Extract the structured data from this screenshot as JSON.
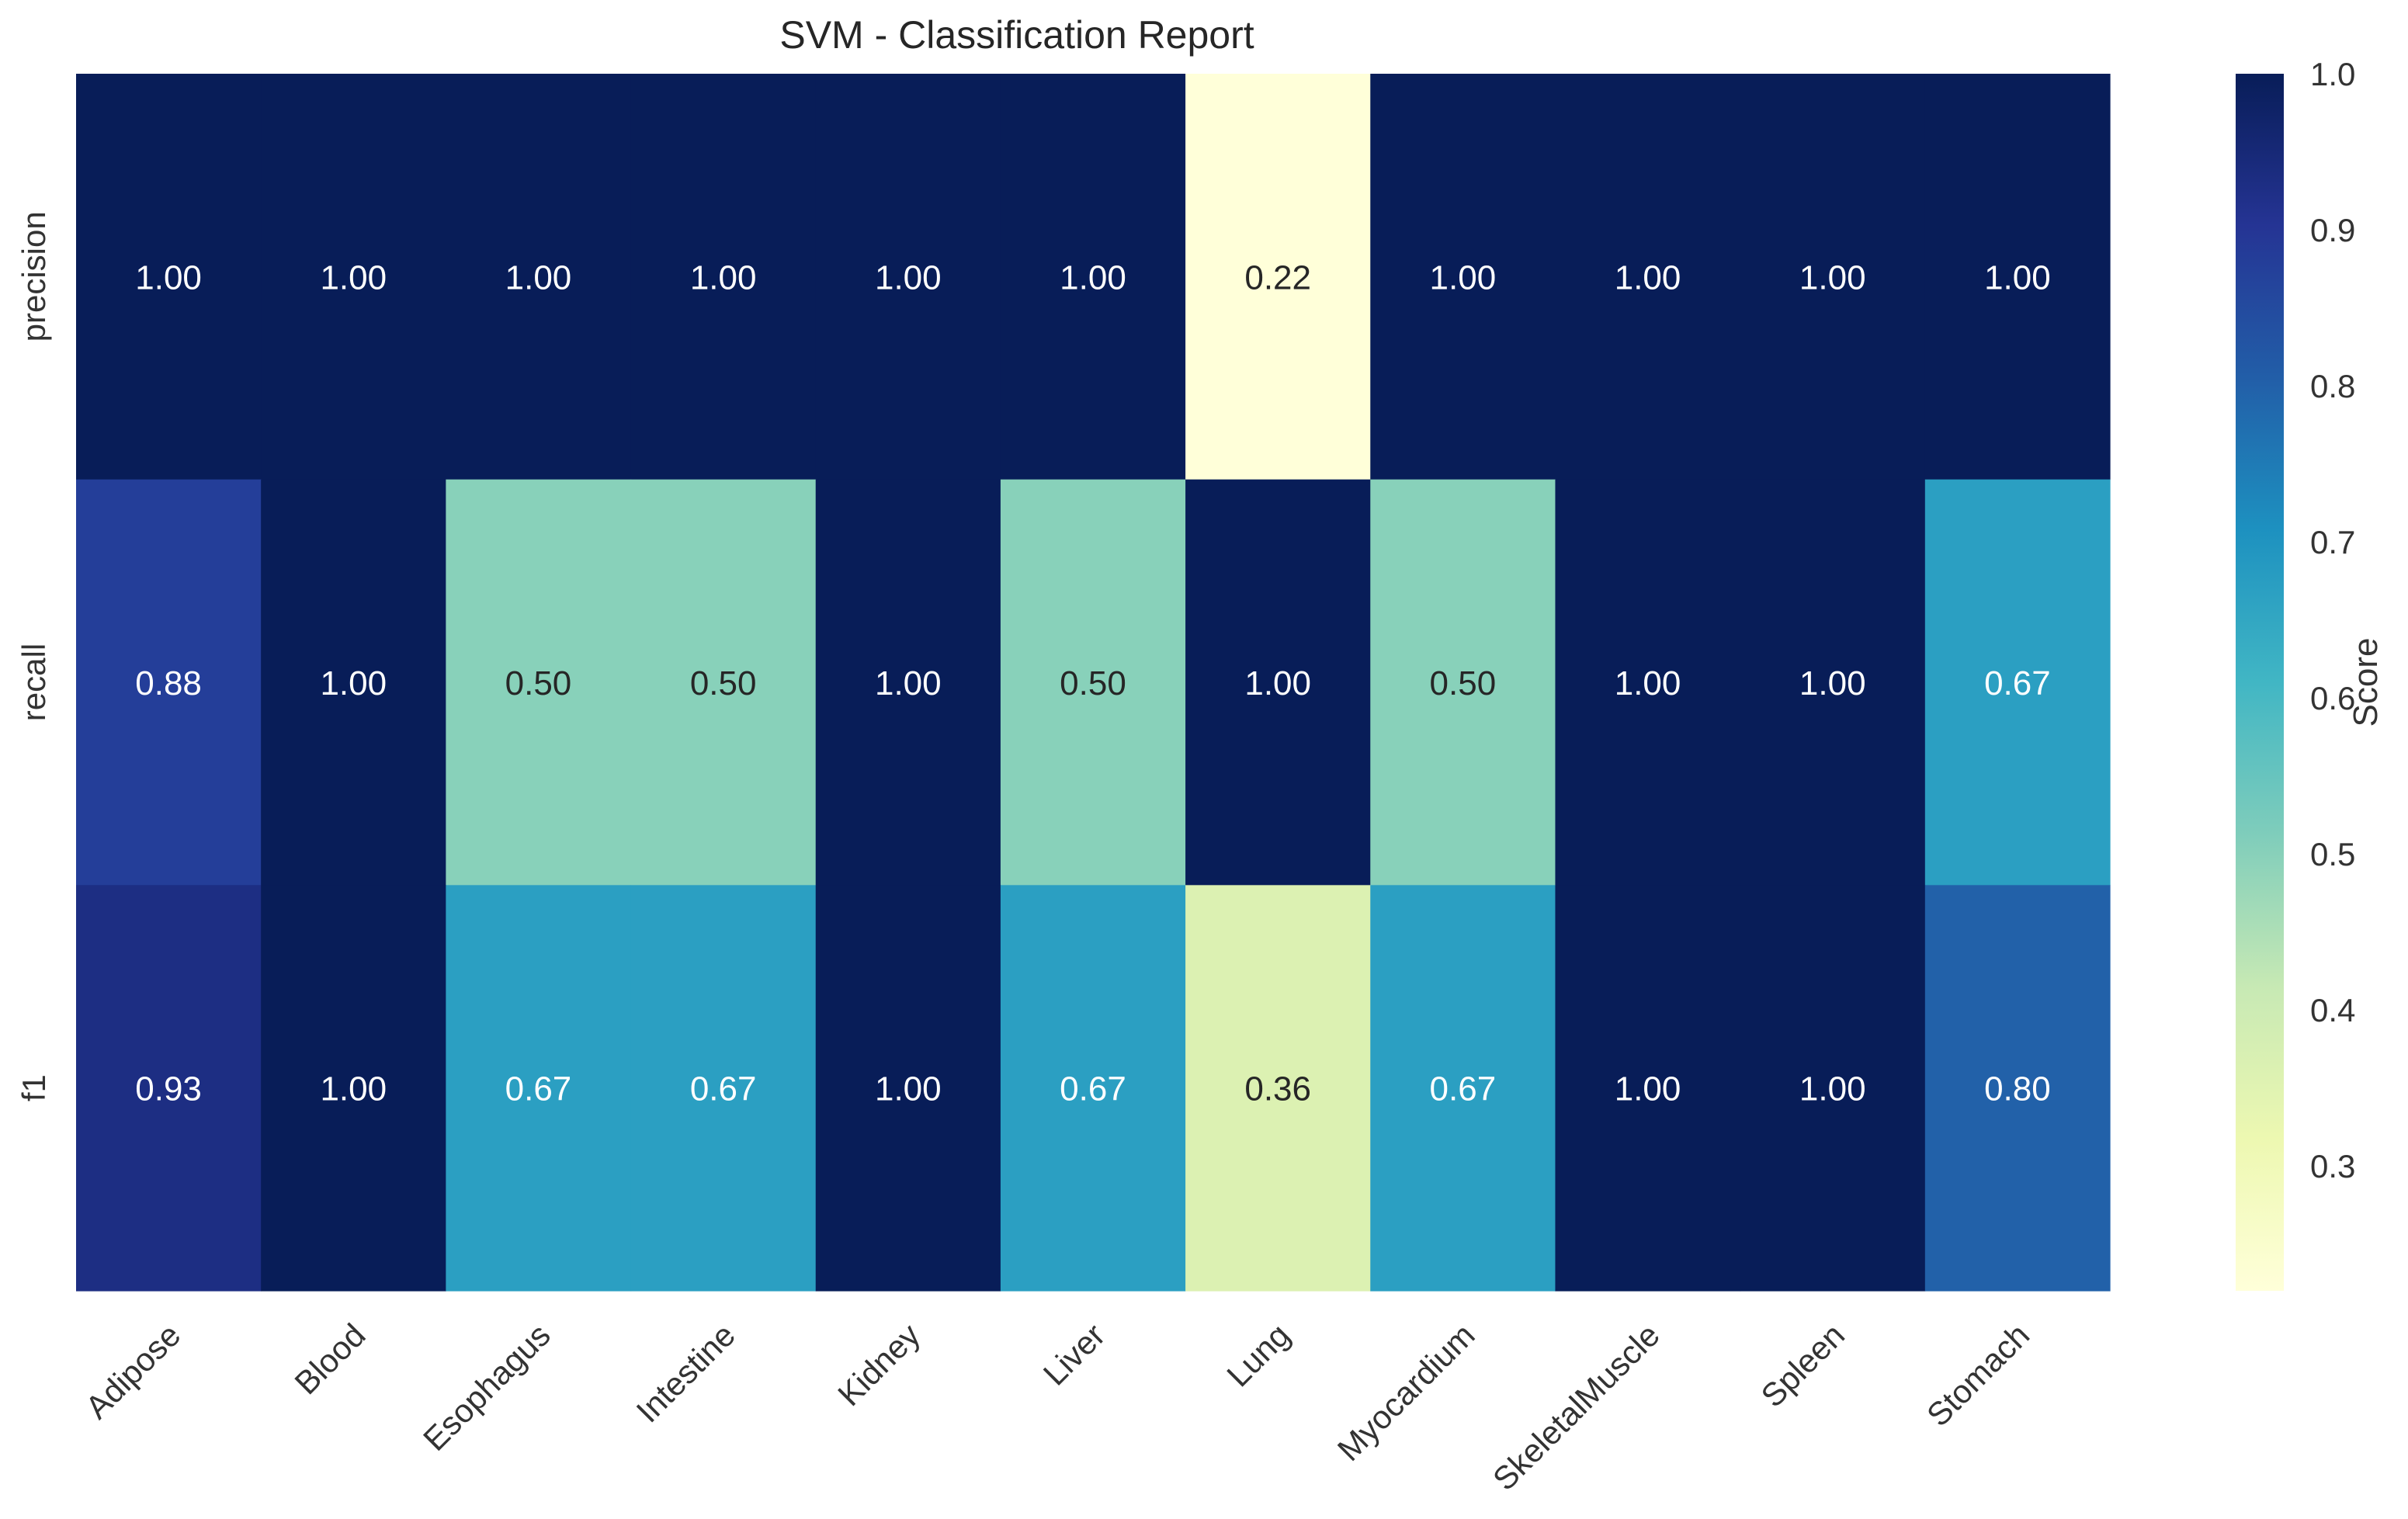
{
  "chart_data": {
    "type": "heatmap",
    "title": "SVM - Classification Report",
    "row_labels": [
      "precision",
      "recall",
      "f1"
    ],
    "col_labels": [
      "Adipose",
      "Blood",
      "Esophagus",
      "Intestine",
      "Kidney",
      "Liver",
      "Lung",
      "Myocardium",
      "SkeletalMuscle",
      "Spleen",
      "Stomach"
    ],
    "values": [
      [
        1.0,
        1.0,
        1.0,
        1.0,
        1.0,
        1.0,
        0.22,
        1.0,
        1.0,
        1.0,
        1.0
      ],
      [
        0.88,
        1.0,
        0.5,
        0.5,
        1.0,
        0.5,
        1.0,
        0.5,
        1.0,
        1.0,
        0.67
      ],
      [
        0.93,
        1.0,
        0.67,
        0.67,
        1.0,
        0.67,
        0.36,
        0.67,
        1.0,
        1.0,
        0.8
      ]
    ],
    "value_format": "0.00",
    "colormap": "YlGnBu",
    "colorbar": {
      "label": "Score",
      "vmin": 0.22,
      "vmax": 1.0,
      "ticks": [
        "1.0",
        "0.9",
        "0.8",
        "0.7",
        "0.6",
        "0.5",
        "0.4",
        "0.3"
      ]
    },
    "xlabel": "",
    "ylabel": ""
  }
}
